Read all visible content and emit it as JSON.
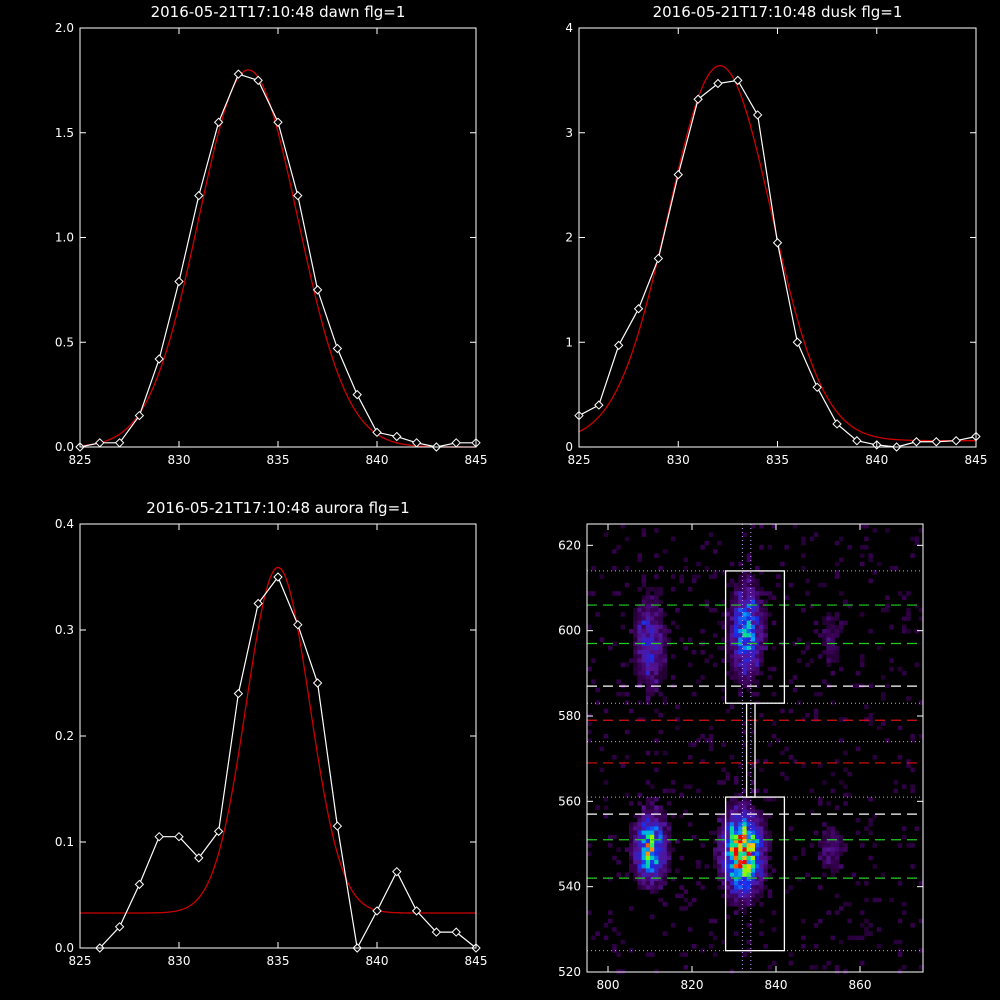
{
  "colors": {
    "background": "#000000",
    "axes": "#ffffff",
    "data": "#ffffff",
    "fit": "#cc0000"
  },
  "chart_data": [
    {
      "type": "line",
      "title": "2016-05-21T17:10:48 dawn flg=1",
      "xlim": [
        825,
        845
      ],
      "ylim": [
        0,
        2.0
      ],
      "xticks": [
        "825",
        "830",
        "835",
        "840",
        "845"
      ],
      "yticks": [
        "0.0",
        "0.5",
        "1.0",
        "1.5",
        "2.0"
      ],
      "series": [
        {
          "marker": "diamond",
          "color": "#ffffff",
          "x": [
            825,
            826,
            827,
            828,
            829,
            830,
            831,
            832,
            833,
            834,
            835,
            836,
            837,
            838,
            839,
            840,
            841,
            842,
            843,
            844,
            845
          ],
          "y": [
            0.0,
            0.02,
            0.02,
            0.15,
            0.42,
            0.79,
            1.2,
            1.55,
            1.78,
            1.75,
            1.55,
            1.2,
            0.75,
            0.47,
            0.25,
            0.07,
            0.05,
            0.02,
            0.0,
            0.02,
            0.02
          ]
        },
        {
          "color": "#cc0000",
          "fit": "gauss",
          "amp": 1.8,
          "center": 833.5,
          "sigma": 2.5,
          "offset": 0.0
        }
      ]
    },
    {
      "type": "line",
      "title": "2016-05-21T17:10:48 dusk flg=1",
      "xlim": [
        825,
        845
      ],
      "ylim": [
        0,
        4
      ],
      "xticks": [
        "825",
        "830",
        "835",
        "840",
        "845"
      ],
      "yticks": [
        "0",
        "1",
        "2",
        "3",
        "4"
      ],
      "series": [
        {
          "marker": "diamond",
          "color": "#ffffff",
          "x": [
            825,
            826,
            827,
            828,
            829,
            830,
            831,
            832,
            833,
            834,
            835,
            836,
            837,
            838,
            839,
            840,
            841,
            842,
            843,
            844,
            845
          ],
          "y": [
            0.3,
            0.4,
            0.97,
            1.32,
            1.8,
            2.6,
            3.32,
            3.47,
            3.5,
            3.17,
            1.95,
            1.0,
            0.57,
            0.22,
            0.06,
            0.02,
            0.0,
            0.05,
            0.05,
            0.06,
            0.1
          ]
        },
        {
          "color": "#cc0000",
          "fit": "gauss",
          "amp": 3.58,
          "center": 832.1,
          "sigma": 2.6,
          "offset": 0.06
        }
      ]
    },
    {
      "type": "line",
      "title": "2016-05-21T17:10:48 aurora flg=1",
      "xlim": [
        825,
        845
      ],
      "ylim": [
        0,
        0.4
      ],
      "xticks": [
        "825",
        "830",
        "835",
        "840",
        "845"
      ],
      "yticks": [
        "0.0",
        "0.1",
        "0.2",
        "0.3",
        "0.4"
      ],
      "series": [
        {
          "marker": "diamond",
          "color": "#ffffff",
          "x": [
            826,
            827,
            828,
            829,
            830,
            831,
            832,
            833,
            834,
            835,
            836,
            837,
            838,
            839,
            840,
            841,
            842,
            843,
            844,
            845
          ],
          "y": [
            0.0,
            0.02,
            0.06,
            0.105,
            0.105,
            0.085,
            0.11,
            0.24,
            0.325,
            0.35,
            0.305,
            0.25,
            0.115,
            0.0,
            0.035,
            0.072,
            0.035,
            0.015,
            0.015,
            0.0
          ]
        },
        {
          "color": "#cc0000",
          "fit": "gauss",
          "amp": 0.326,
          "center": 835.0,
          "sigma": 1.6,
          "offset": 0.033
        }
      ]
    },
    {
      "type": "heatmap",
      "title": "",
      "xlim": [
        795,
        875
      ],
      "ylim": [
        520,
        625
      ],
      "xticks": [
        "800",
        "820",
        "840",
        "860"
      ],
      "yticks": [
        "520",
        "540",
        "560",
        "580",
        "600",
        "620"
      ],
      "blobs": [
        {
          "x": 810,
          "y": 549,
          "sx": 2.5,
          "sy": 5,
          "peak": 0.75
        },
        {
          "x": 832,
          "y": 548,
          "sx": 3.0,
          "sy": 6,
          "peak": 1.0
        },
        {
          "x": 810,
          "y": 597,
          "sx": 2.5,
          "sy": 7,
          "peak": 0.35
        },
        {
          "x": 833,
          "y": 600,
          "sx": 2.5,
          "sy": 7,
          "peak": 0.55
        },
        {
          "x": 853,
          "y": 549,
          "sx": 2.0,
          "sy": 4,
          "peak": 0.22
        },
        {
          "x": 853,
          "y": 598,
          "sx": 2.0,
          "sy": 5,
          "peak": 0.14
        }
      ],
      "boxes": [
        {
          "x0": 828,
          "x1": 842,
          "y0": 525,
          "y1": 561
        },
        {
          "x0": 828,
          "x1": 842,
          "y0": 583,
          "y1": 614
        },
        {
          "x0": 833,
          "x1": 835,
          "y0": 561,
          "y1": 583
        }
      ],
      "hlines": [
        {
          "y": 606,
          "color": "#22cc22",
          "style": "dashed"
        },
        {
          "y": 597,
          "color": "#22cc22",
          "style": "dashed"
        },
        {
          "y": 551,
          "color": "#22cc22",
          "style": "dashed"
        },
        {
          "y": 542,
          "color": "#22cc22",
          "style": "dashed"
        },
        {
          "y": 587,
          "color": "#ffffff",
          "style": "dashed"
        },
        {
          "y": 557,
          "color": "#ffffff",
          "style": "dashed"
        },
        {
          "y": 579,
          "color": "#dd1111",
          "style": "dashed"
        },
        {
          "y": 569,
          "color": "#dd1111",
          "style": "dashed"
        },
        {
          "y": 614,
          "color": "#cc99ff",
          "style": "dotted"
        },
        {
          "y": 583,
          "color": "#cc99ff",
          "style": "dotted"
        },
        {
          "y": 574,
          "color": "#cc99ff",
          "style": "dotted"
        },
        {
          "y": 561,
          "color": "#cc99ff",
          "style": "dotted"
        },
        {
          "y": 525,
          "color": "#cc99ff",
          "style": "dotted"
        }
      ],
      "vlines": [
        {
          "x": 832,
          "color": "#cc99ff",
          "style": "dotted"
        },
        {
          "x": 834,
          "color": "#cc99ff",
          "style": "dotted"
        }
      ]
    }
  ]
}
